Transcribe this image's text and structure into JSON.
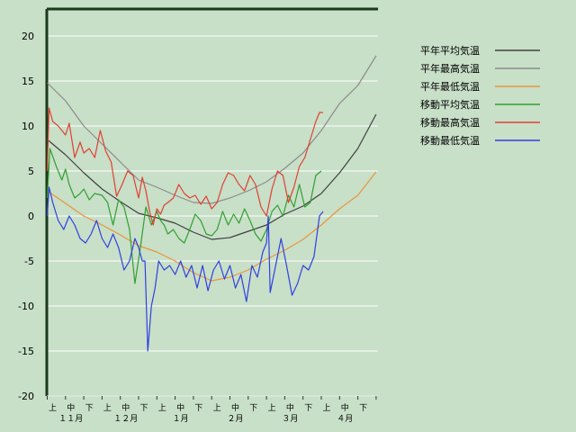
{
  "chart_data": {
    "type": "line",
    "title": "",
    "xlabel": "",
    "ylabel": "",
    "ylim": [
      -20,
      23
    ],
    "xlim": [
      0,
      18
    ],
    "yticks": [
      -20,
      -15,
      -10,
      -5,
      0,
      5,
      10,
      15,
      20
    ],
    "ytick_labels": [
      "-20",
      "-15",
      "-10",
      "-5",
      "0",
      "5",
      "10",
      "15",
      "20"
    ],
    "period_labels": [
      "上",
      "中",
      "下",
      "上",
      "中",
      "下",
      "上",
      "中",
      "下",
      "上",
      "中",
      "下",
      "上",
      "中",
      "下",
      "上",
      "中",
      "下"
    ],
    "month_labels": [
      "１１月",
      "１２月",
      "１月",
      "２月",
      "３月",
      "４月"
    ],
    "grid": true,
    "legend_position": "top-right",
    "x_unit": "旬 (ten-day period index, 0 = start of 11月上旬)",
    "series": [
      {
        "name": "平年平均気温",
        "color": "#404040",
        "x": [
          0,
          1,
          2,
          3,
          4,
          5,
          6,
          7,
          8,
          9,
          10,
          11,
          12,
          13,
          14,
          15,
          16,
          17,
          18
        ],
        "y": [
          8.5,
          6.8,
          4.8,
          3.0,
          1.6,
          0.3,
          -0.2,
          -0.8,
          -1.8,
          -2.6,
          -2.4,
          -1.7,
          -1.0,
          0.2,
          1.1,
          2.5,
          4.8,
          7.5,
          11.3
        ]
      },
      {
        "name": "平年最高気温",
        "color": "#8c8c8c",
        "x": [
          0,
          1,
          2,
          3,
          4,
          5,
          6,
          7,
          8,
          9,
          10,
          11,
          12,
          13,
          14,
          15,
          16,
          17,
          18
        ],
        "y": [
          14.8,
          12.8,
          10.0,
          8.0,
          6.0,
          4.0,
          3.2,
          2.3,
          1.5,
          1.4,
          2.0,
          2.8,
          3.8,
          5.3,
          7.0,
          9.5,
          12.5,
          14.5,
          17.8
        ]
      },
      {
        "name": "平年最低気温",
        "color": "#e8963c",
        "x": [
          0,
          1,
          2,
          3,
          4,
          5,
          6,
          7,
          8,
          9,
          10,
          11,
          12,
          13,
          14,
          15,
          16,
          17,
          18
        ],
        "y": [
          2.8,
          1.4,
          0.0,
          -1.0,
          -2.1,
          -3.3,
          -4.0,
          -5.0,
          -6.3,
          -7.2,
          -6.8,
          -6.0,
          -4.8,
          -3.8,
          -2.6,
          -1.0,
          0.8,
          2.3,
          4.9
        ]
      },
      {
        "name": "移動平均気温",
        "color": "#30a030",
        "x": [
          0,
          0.15,
          0.5,
          0.8,
          1.0,
          1.2,
          1.5,
          1.8,
          2.0,
          2.3,
          2.6,
          3.0,
          3.3,
          3.6,
          3.9,
          4.2,
          4.5,
          4.8,
          5.1,
          5.4,
          5.7,
          6.0,
          6.2,
          6.4,
          6.6,
          6.9,
          7.2,
          7.5,
          7.8,
          8.1,
          8.4,
          8.7,
          9.0,
          9.3,
          9.6,
          9.9,
          10.2,
          10.5,
          10.8,
          11.1,
          11.4,
          11.7,
          12.0,
          12.3,
          12.6,
          12.9,
          13.2,
          13.5,
          13.8,
          14.1,
          14.4,
          14.7,
          15.0
        ],
        "y": [
          2.0,
          7.5,
          5.5,
          4.0,
          5.2,
          3.5,
          2.0,
          2.5,
          3.0,
          1.8,
          2.5,
          2.3,
          1.5,
          -1.0,
          1.8,
          1.0,
          -1.5,
          -7.5,
          -3.5,
          1.0,
          -1.0,
          0.5,
          -0.5,
          -1.0,
          -2.0,
          -1.5,
          -2.5,
          -3.0,
          -1.5,
          0.2,
          -0.5,
          -2.0,
          -2.2,
          -1.5,
          0.5,
          -1.0,
          0.2,
          -0.8,
          0.8,
          -0.5,
          -2.0,
          -2.8,
          -1.5,
          0.5,
          1.2,
          0.0,
          2.3,
          1.0,
          3.5,
          1.0,
          1.5,
          4.5,
          5.0
        ]
      },
      {
        "name": "移動最高気温",
        "color": "#e04030",
        "x": [
          0,
          0.1,
          0.3,
          0.6,
          1.0,
          1.2,
          1.5,
          1.8,
          2.0,
          2.3,
          2.6,
          2.9,
          3.2,
          3.5,
          3.8,
          4.1,
          4.4,
          4.7,
          5.0,
          5.2,
          5.4,
          5.6,
          5.8,
          6.0,
          6.2,
          6.4,
          6.6,
          6.9,
          7.2,
          7.5,
          7.8,
          8.1,
          8.4,
          8.7,
          9.0,
          9.3,
          9.6,
          9.9,
          10.2,
          10.5,
          10.8,
          11.1,
          11.4,
          11.7,
          12.0,
          12.3,
          12.6,
          12.9,
          13.2,
          13.5,
          13.8,
          14.1,
          14.4,
          14.7,
          14.9,
          15.1
        ],
        "y": [
          5.0,
          12.0,
          10.5,
          10.0,
          9.0,
          10.3,
          6.5,
          8.2,
          7.0,
          7.5,
          6.5,
          9.5,
          7.2,
          6.0,
          2.2,
          3.5,
          5.0,
          4.5,
          2.0,
          4.3,
          2.8,
          0.5,
          -1.0,
          0.8,
          0.2,
          1.2,
          1.5,
          2.0,
          3.5,
          2.5,
          2.0,
          2.3,
          1.3,
          2.2,
          0.8,
          1.5,
          3.5,
          4.8,
          4.5,
          3.5,
          2.8,
          4.5,
          3.5,
          1.0,
          0.0,
          3.0,
          5.0,
          4.5,
          1.5,
          3.2,
          5.5,
          6.5,
          8.5,
          10.5,
          11.5,
          11.5
        ]
      },
      {
        "name": "移動最低気温",
        "color": "#3040e0",
        "x": [
          0,
          0.1,
          0.3,
          0.6,
          0.9,
          1.2,
          1.5,
          1.8,
          2.1,
          2.4,
          2.7,
          3.0,
          3.3,
          3.6,
          3.9,
          4.2,
          4.5,
          4.8,
          5.0,
          5.2,
          5.35,
          5.5,
          5.7,
          5.9,
          6.1,
          6.4,
          6.7,
          7.0,
          7.3,
          7.6,
          7.9,
          8.2,
          8.5,
          8.8,
          9.1,
          9.4,
          9.7,
          10.0,
          10.3,
          10.6,
          10.9,
          11.2,
          11.5,
          11.8,
          12.0,
          12.1,
          12.2,
          12.5,
          12.8,
          13.1,
          13.4,
          13.7,
          14.0,
          14.3,
          14.6,
          14.9,
          15.1
        ],
        "y": [
          0.0,
          3.2,
          1.5,
          -0.5,
          -1.5,
          0.0,
          -1.0,
          -2.5,
          -3.0,
          -2.0,
          -0.5,
          -2.5,
          -3.5,
          -2.0,
          -3.5,
          -6.0,
          -5.0,
          -2.5,
          -3.5,
          -5.0,
          -5.0,
          -15.0,
          -10.0,
          -8.0,
          -5.0,
          -6.0,
          -5.5,
          -6.5,
          -5.0,
          -6.8,
          -5.5,
          -8.0,
          -5.5,
          -8.3,
          -6.0,
          -5.0,
          -7.0,
          -5.5,
          -8.0,
          -6.5,
          -9.5,
          -5.5,
          -6.8,
          -4.0,
          -3.0,
          0.0,
          -8.5,
          -5.5,
          -2.5,
          -5.5,
          -8.8,
          -7.5,
          -5.5,
          -6.0,
          -4.5,
          0.0,
          0.5
        ]
      }
    ]
  }
}
